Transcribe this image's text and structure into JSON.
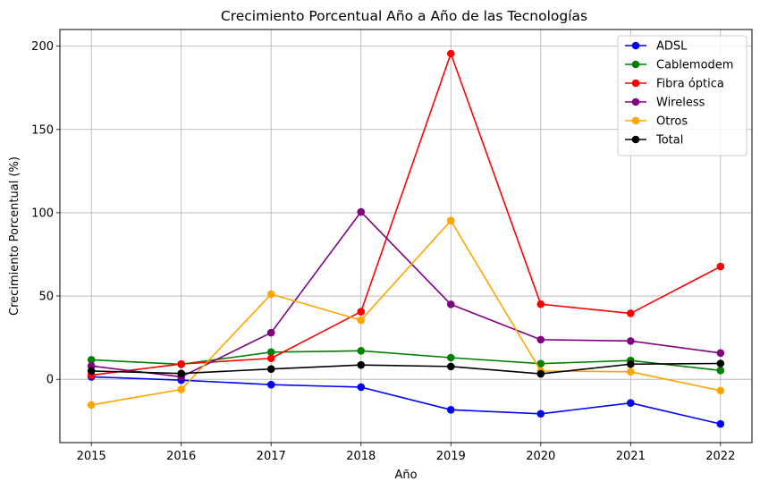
{
  "chart_data": {
    "type": "line",
    "title": "Crecimiento Porcentual Año a Año de las Tecnologías",
    "xlabel": "Año",
    "ylabel": "Crecimiento Porcentual (%)",
    "x": [
      2015,
      2016,
      2017,
      2018,
      2019,
      2020,
      2021,
      2022
    ],
    "x_ticks": [
      "2015",
      "2016",
      "2017",
      "2018",
      "2019",
      "2020",
      "2021",
      "2022"
    ],
    "y_ticks": [
      "0",
      "50",
      "100",
      "150",
      "200"
    ],
    "xlim": [
      2014.65,
      2022.35
    ],
    "ylim": [
      -38,
      210
    ],
    "grid": true,
    "legend_position": "top-right",
    "series": [
      {
        "name": "ADSL",
        "color": "#0000ff",
        "values": [
          1.5,
          -0.5,
          -3.2,
          -4.7,
          -18.3,
          -20.7,
          -14.2,
          -26.8
        ]
      },
      {
        "name": "Cablemodem",
        "color": "#008000",
        "values": [
          11.7,
          9.0,
          16.3,
          17.1,
          13.0,
          9.4,
          11.3,
          5.3
        ]
      },
      {
        "name": "Fibra óptica",
        "color": "#ff0000",
        "values": [
          2.5,
          9.2,
          12.6,
          40.6,
          195.5,
          45.1,
          39.6,
          67.7
        ]
      },
      {
        "name": "Wireless",
        "color": "#800080",
        "values": [
          8.0,
          1.5,
          28.0,
          100.5,
          45.0,
          23.8,
          23.0,
          15.8
        ]
      },
      {
        "name": "Otros",
        "color": "#ffa500",
        "values": [
          -15.4,
          -6.1,
          51.1,
          35.5,
          95.3,
          5.0,
          4.5,
          -6.8
        ]
      },
      {
        "name": "Total",
        "color": "#000000",
        "values": [
          5.0,
          3.5,
          6.2,
          8.6,
          7.7,
          3.3,
          9.1,
          9.5
        ]
      }
    ]
  }
}
